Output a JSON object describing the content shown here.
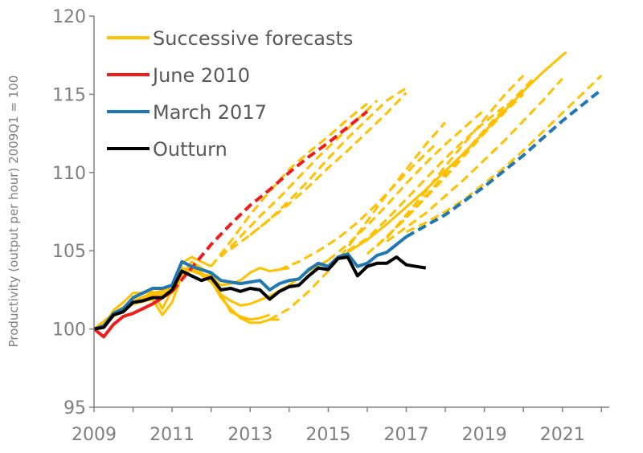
{
  "chart_data": {
    "type": "line",
    "ylabel": "Productivity  (output per hour) 2009Q1 = 100",
    "xlabel": "",
    "ylim": [
      95,
      120
    ],
    "xlim": [
      2009,
      2022.2
    ],
    "y_ticks": [
      "95",
      "100",
      "105",
      "110",
      "115",
      "120"
    ],
    "x_ticks": [
      "2009",
      "2011",
      "2013",
      "2015",
      "2017",
      "2019",
      "2021"
    ],
    "grid": false,
    "legend_position": "top-left",
    "legend": [
      {
        "label": "Successive forecasts",
        "color": "#FFC000"
      },
      {
        "label": "June 2010",
        "color": "#EE1C1C"
      },
      {
        "label": "March 2017",
        "color": "#1F77B4"
      },
      {
        "label": "Outturn",
        "color": "#000000"
      }
    ],
    "series": [
      {
        "name": "Outturn",
        "color": "#000000",
        "style": "solid",
        "x": [
          2009.0,
          2009.25,
          2009.5,
          2009.75,
          2010.0,
          2010.25,
          2010.5,
          2010.75,
          2011.0,
          2011.25,
          2011.5,
          2011.75,
          2012.0,
          2012.25,
          2012.5,
          2012.75,
          2013.0,
          2013.25,
          2013.5,
          2013.75,
          2014.0,
          2014.25,
          2014.5,
          2014.75,
          2015.0,
          2015.25,
          2015.5,
          2015.75,
          2016.0,
          2016.25,
          2016.5,
          2016.75,
          2017.0,
          2017.25,
          2017.5
        ],
        "y": [
          100.0,
          100.1,
          100.9,
          101.1,
          101.7,
          101.8,
          102.0,
          102.0,
          102.5,
          103.7,
          103.4,
          103.1,
          103.3,
          102.5,
          102.6,
          102.4,
          102.6,
          102.5,
          101.9,
          102.4,
          102.7,
          102.8,
          103.4,
          103.9,
          103.8,
          104.5,
          104.6,
          103.4,
          104.0,
          104.2,
          104.2,
          104.6,
          104.1,
          104.0,
          103.9
        ]
      },
      {
        "name": "March 2017",
        "color": "#1F77B4",
        "style": "solid",
        "x": [
          2009.0,
          2009.25,
          2009.5,
          2009.75,
          2010.0,
          2010.25,
          2010.5,
          2010.75,
          2011.0,
          2011.25,
          2011.5,
          2011.75,
          2012.0,
          2012.25,
          2012.5,
          2012.75,
          2013.0,
          2013.25,
          2013.5,
          2013.75,
          2014.0,
          2014.25,
          2014.5,
          2014.75,
          2015.0,
          2015.25,
          2015.5,
          2015.75,
          2016.0,
          2016.25,
          2016.5,
          2016.75,
          2017.0
        ],
        "y": [
          100.0,
          100.2,
          101.0,
          101.3,
          102.0,
          102.3,
          102.6,
          102.6,
          102.8,
          104.3,
          104.0,
          103.8,
          103.6,
          103.1,
          103.0,
          102.9,
          103.0,
          103.1,
          102.5,
          102.9,
          103.1,
          103.2,
          103.8,
          104.2,
          104.0,
          104.6,
          104.8,
          104.0,
          104.2,
          104.7,
          104.9,
          105.4,
          105.9
        ]
      },
      {
        "name": "March 2017",
        "color": "#1F77B4",
        "style": "dashed",
        "x": [
          2017.0,
          2017.5,
          2018.0,
          2018.5,
          2019.0,
          2019.5,
          2020.0,
          2020.5,
          2021.0,
          2021.5,
          2022.0
        ],
        "y": [
          105.9,
          106.6,
          107.3,
          108.2,
          109.1,
          110.1,
          111.1,
          112.2,
          113.3,
          114.3,
          115.3
        ]
      },
      {
        "name": "June 2010",
        "color": "#EE1C1C",
        "style": "solid",
        "x": [
          2009.0,
          2009.25,
          2009.5,
          2009.75,
          2010.0,
          2010.25,
          2010.5,
          2010.75,
          2011.0
        ],
        "y": [
          100.0,
          99.5,
          100.3,
          100.8,
          101.0,
          101.3,
          101.6,
          102.0,
          102.4
        ]
      },
      {
        "name": "June 2010",
        "color": "#EE1C1C",
        "style": "dashed",
        "x": [
          2011.0,
          2011.5,
          2012.0,
          2012.5,
          2013.0,
          2013.5,
          2014.0,
          2014.5,
          2015.0,
          2015.5,
          2016.0
        ],
        "y": [
          102.4,
          103.9,
          105.4,
          106.7,
          107.9,
          108.9,
          110.0,
          111.0,
          111.9,
          112.9,
          113.9
        ]
      },
      {
        "name": "Successive forecasts",
        "color": "#FFC000",
        "style": "solid",
        "x": [
          2009.0,
          2009.25,
          2009.5,
          2009.75,
          2010.0,
          2010.25,
          2010.5,
          2010.75,
          2011.0,
          2011.25,
          2011.5,
          2011.75,
          2012.0
        ],
        "y": [
          100.0,
          100.2,
          101.2,
          101.7,
          102.3,
          102.3,
          102.4,
          101.3,
          102.5,
          104.2,
          104.6,
          104.3,
          104.0
        ]
      },
      {
        "name": "Successive forecasts",
        "color": "#FFC000",
        "style": "solid",
        "x": [
          2009.0,
          2009.5,
          2010.0,
          2010.5,
          2010.75,
          2011.0,
          2011.25,
          2011.5,
          2011.75,
          2012.0,
          2012.25,
          2012.5,
          2012.75,
          2013.0,
          2013.25,
          2013.5
        ],
        "y": [
          100.0,
          100.8,
          101.6,
          101.9,
          100.9,
          101.7,
          103.4,
          104.3,
          103.9,
          103.5,
          102.2,
          101.1,
          100.8,
          100.6,
          100.7,
          100.9
        ]
      },
      {
        "name": "Successive forecasts",
        "color": "#FFC000",
        "style": "solid",
        "x": [
          2009.0,
          2009.5,
          2010.0,
          2010.5,
          2011.0,
          2011.25,
          2011.5,
          2011.75,
          2012.0,
          2012.25,
          2012.5,
          2012.75,
          2013.0,
          2013.25,
          2013.5,
          2013.75
        ],
        "y": [
          100.0,
          100.9,
          101.7,
          102.1,
          102.3,
          103.6,
          103.9,
          103.6,
          103.1,
          102.0,
          101.3,
          100.7,
          100.4,
          100.4,
          100.6,
          100.6
        ]
      },
      {
        "name": "Successive forecasts",
        "color": "#FFC000",
        "style": "solid",
        "x": [
          2009.0,
          2009.5,
          2010.0,
          2010.5,
          2011.0,
          2011.25,
          2011.5,
          2011.75,
          2012.0,
          2012.25,
          2012.5,
          2012.75,
          2013.0,
          2013.25,
          2013.5,
          2013.75,
          2014.0
        ],
        "y": [
          100.0,
          100.9,
          101.7,
          102.2,
          102.4,
          103.9,
          103.7,
          103.5,
          103.4,
          102.8,
          102.9,
          103.1,
          103.6,
          103.9,
          103.7,
          103.8,
          103.9
        ]
      },
      {
        "name": "Successive forecasts",
        "color": "#FFC000",
        "style": "solid",
        "x": [
          2009.0,
          2009.5,
          2010.0,
          2010.5,
          2011.0,
          2011.5,
          2012.0,
          2012.25,
          2012.5,
          2012.75,
          2013.0,
          2013.5,
          2014.0,
          2014.5,
          2015.0
        ],
        "y": [
          100.0,
          101.0,
          101.8,
          102.3,
          102.6,
          103.9,
          103.0,
          102.2,
          101.8,
          101.5,
          101.6,
          102.1,
          102.8,
          103.7,
          104.4
        ]
      },
      {
        "name": "Successive forecasts",
        "color": "#FFC000",
        "style": "dashed",
        "x": [
          2012.0,
          2012.5,
          2013.0,
          2013.5,
          2014.0,
          2014.5,
          2015.0,
          2015.5,
          2016.0
        ],
        "y": [
          104.0,
          105.6,
          107.3,
          108.8,
          110.2,
          111.3,
          112.3,
          113.4,
          114.4
        ]
      },
      {
        "name": "Successive forecasts",
        "color": "#FFC000",
        "style": "dashed",
        "x": [
          2012.25,
          2012.75,
          2013.25,
          2013.75,
          2014.25,
          2014.75,
          2015.25,
          2015.75,
          2016.25
        ],
        "y": [
          104.6,
          105.9,
          107.2,
          108.4,
          109.7,
          111.0,
          112.2,
          113.4,
          114.6
        ]
      },
      {
        "name": "Successive forecasts",
        "color": "#FFC000",
        "style": "dashed",
        "x": [
          2012.5,
          2013.0,
          2013.5,
          2014.0,
          2014.5,
          2015.0,
          2015.5,
          2016.0,
          2016.5,
          2017.0
        ],
        "y": [
          105.1,
          106.0,
          107.0,
          108.0,
          109.1,
          110.3,
          111.4,
          112.6,
          113.8,
          115.1
        ]
      },
      {
        "name": "Successive forecasts",
        "color": "#FFC000",
        "style": "dashed",
        "x": [
          2013.0,
          2013.5,
          2014.0,
          2014.5,
          2015.0,
          2015.5,
          2016.0,
          2016.5,
          2017.0
        ],
        "y": [
          106.0,
          107.0,
          108.2,
          109.5,
          110.9,
          112.2,
          113.4,
          114.6,
          115.4
        ]
      },
      {
        "name": "Successive forecasts",
        "color": "#FFC000",
        "style": "dashed",
        "x": [
          2013.5,
          2014.0,
          2014.5,
          2015.0,
          2015.5,
          2016.0,
          2016.5,
          2017.0,
          2017.5,
          2018.0
        ],
        "y": [
          100.6,
          101.3,
          102.4,
          103.7,
          105.2,
          106.9,
          108.6,
          110.2,
          111.8,
          113.2
        ]
      },
      {
        "name": "Successive forecasts",
        "color": "#FFC000",
        "style": "dashed",
        "x": [
          2013.75,
          2014.25,
          2014.75,
          2015.25,
          2015.75,
          2016.25,
          2016.75,
          2017.25,
          2017.75
        ],
        "y": [
          103.8,
          104.3,
          105.0,
          105.8,
          106.8,
          108.0,
          109.3,
          110.6,
          111.8
        ]
      },
      {
        "name": "Successive forecasts",
        "color": "#FFC000",
        "style": "dashed",
        "x": [
          2015.0,
          2015.5,
          2016.0,
          2016.5,
          2017.0,
          2017.5,
          2018.0,
          2018.5,
          2019.0
        ],
        "y": [
          104.4,
          105.4,
          106.6,
          107.9,
          109.3,
          110.6,
          111.8,
          112.9,
          114.0
        ]
      },
      {
        "name": "Successive forecasts",
        "color": "#FFC000",
        "style": "dashed",
        "x": [
          2015.5,
          2016.0,
          2016.5,
          2017.0,
          2017.5,
          2018.0,
          2018.5,
          2019.0,
          2019.5
        ],
        "y": [
          105.0,
          105.8,
          107.0,
          108.3,
          109.6,
          110.9,
          112.1,
          113.2,
          114.2
        ]
      },
      {
        "name": "Successive forecasts",
        "color": "#FFC000",
        "style": "dashed",
        "x": [
          2016.0,
          2016.5,
          2017.0,
          2017.5,
          2018.0,
          2018.5,
          2019.0,
          2019.5,
          2020.0
        ],
        "y": [
          104.8,
          105.9,
          107.1,
          108.4,
          109.7,
          111.1,
          112.5,
          113.8,
          115.0
        ]
      },
      {
        "name": "Successive forecasts",
        "color": "#FFC000",
        "style": "dashed",
        "x": [
          2016.25,
          2016.75,
          2017.25,
          2017.75,
          2018.25,
          2018.75,
          2019.25,
          2019.75,
          2020.25
        ],
        "y": [
          105.3,
          106.5,
          107.8,
          109.2,
          110.6,
          112.0,
          113.4,
          114.7,
          116.0
        ]
      },
      {
        "name": "Successive forecasts",
        "color": "#FFC000",
        "style": "dashed",
        "x": [
          2016.5,
          2017.0,
          2017.5,
          2018.0,
          2018.5,
          2019.0,
          2019.5,
          2020.0
        ],
        "y": [
          105.8,
          107.3,
          108.8,
          110.4,
          111.9,
          113.4,
          114.9,
          116.2
        ]
      },
      {
        "name": "Successive forecasts",
        "color": "#FFC000",
        "style": "solid",
        "x": [
          2015.5,
          2016.0,
          2016.5,
          2017.0,
          2017.5,
          2018.0,
          2018.5,
          2019.0,
          2019.5,
          2020.0,
          2020.5,
          2021.0,
          2021.1
        ],
        "y": [
          104.9,
          105.7,
          106.7,
          107.8,
          108.9,
          110.1,
          111.3,
          112.6,
          113.9,
          115.2,
          116.4,
          117.5,
          117.7
        ]
      },
      {
        "name": "Successive forecasts",
        "color": "#FFC000",
        "style": "dashed",
        "x": [
          2016.5,
          2017.0,
          2017.5,
          2018.0,
          2018.5,
          2019.0,
          2019.5,
          2020.0,
          2020.5,
          2021.0
        ],
        "y": [
          105.6,
          106.5,
          107.4,
          108.5,
          109.6,
          110.8,
          112.0,
          113.3,
          114.6,
          116.0
        ]
      },
      {
        "name": "Successive forecasts",
        "color": "#FFC000",
        "style": "dashed",
        "x": [
          2017.0,
          2017.5,
          2018.0,
          2018.5,
          2019.0,
          2019.5,
          2020.0,
          2020.5,
          2021.0,
          2021.5,
          2022.0
        ],
        "y": [
          106.2,
          106.8,
          107.5,
          108.3,
          109.3,
          110.3,
          111.4,
          112.6,
          113.8,
          115.0,
          116.2
        ]
      }
    ]
  }
}
